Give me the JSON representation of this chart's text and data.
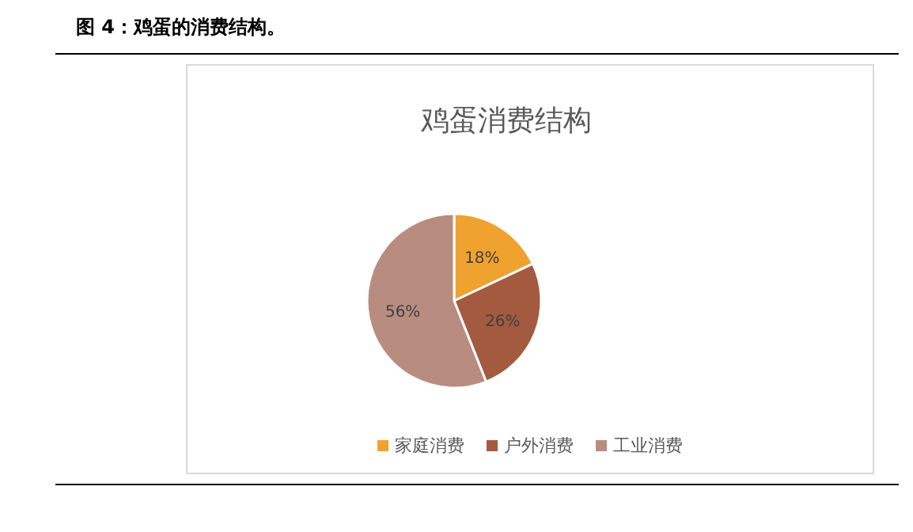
{
  "chart_data": {
    "type": "pie",
    "title": "鸡蛋消费结构",
    "annotations": [
      "图 4：鸡蛋的消费结构。"
    ],
    "categories": [
      "家庭消费",
      "户外消费",
      "工业消费"
    ],
    "values": [
      18,
      26,
      56
    ],
    "colors": [
      "#f0a22e",
      "#a35a3f",
      "#b98c80"
    ],
    "value_labels": [
      "18%",
      "26%",
      "56%"
    ],
    "legend": "bottom"
  }
}
